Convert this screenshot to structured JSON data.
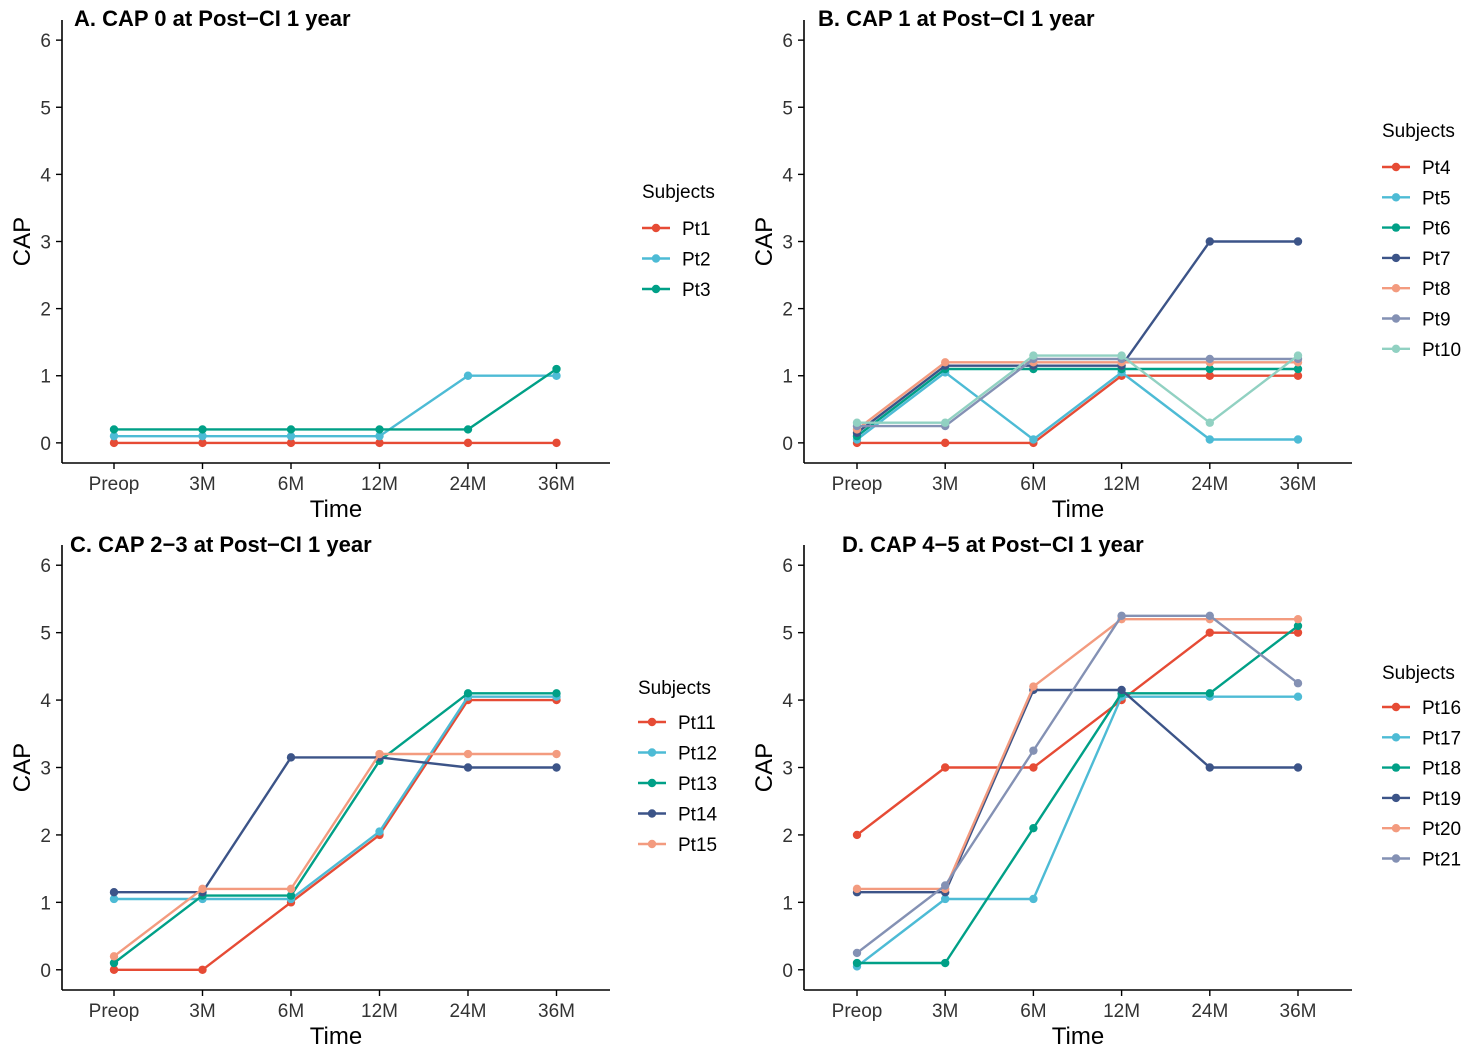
{
  "chart_data": [
    {
      "type": "line",
      "title": "A. CAP 0 at Post−CI 1 year",
      "xlabel": "Time",
      "ylabel": "CAP",
      "categories": [
        "Preop",
        "3M",
        "6M",
        "12M",
        "24M",
        "36M"
      ],
      "ylim": [
        -0.3,
        6.3
      ],
      "yticks": [
        0,
        1,
        2,
        3,
        4,
        5,
        6
      ],
      "legend_title": "Subjects",
      "legend_position": "right",
      "grid": false,
      "series": [
        {
          "name": "Pt1",
          "color": "#E64B35",
          "values": [
            0,
            0,
            0,
            0,
            0,
            0
          ]
        },
        {
          "name": "Pt2",
          "color": "#4DBBD5",
          "values": [
            0.1,
            0.1,
            0.1,
            0.1,
            1,
            1
          ]
        },
        {
          "name": "Pt3",
          "color": "#00A087",
          "values": [
            0.2,
            0.2,
            0.2,
            0.2,
            0.2,
            1.1
          ]
        }
      ]
    },
    {
      "type": "line",
      "title": "B. CAP 1 at Post−CI 1 year",
      "xlabel": "Time",
      "ylabel": "CAP",
      "categories": [
        "Preop",
        "3M",
        "6M",
        "12M",
        "24M",
        "36M"
      ],
      "ylim": [
        -0.3,
        6.3
      ],
      "yticks": [
        0,
        1,
        2,
        3,
        4,
        5,
        6
      ],
      "legend_title": "Subjects",
      "legend_position": "right",
      "grid": false,
      "series": [
        {
          "name": "Pt4",
          "color": "#E64B35",
          "values": [
            0,
            0,
            0,
            1,
            1,
            1
          ]
        },
        {
          "name": "Pt5",
          "color": "#4DBBD5",
          "values": [
            0.05,
            1.05,
            0.05,
            1.05,
            0.05,
            0.05
          ]
        },
        {
          "name": "Pt6",
          "color": "#00A087",
          "values": [
            0.1,
            1.1,
            1.1,
            1.1,
            1.1,
            1.1
          ]
        },
        {
          "name": "Pt7",
          "color": "#3C5488",
          "values": [
            0.15,
            1.15,
            1.15,
            1.15,
            3,
            3
          ]
        },
        {
          "name": "Pt8",
          "color": "#F39B7F",
          "values": [
            0.2,
            1.2,
            1.2,
            1.2,
            1.2,
            1.2
          ]
        },
        {
          "name": "Pt9",
          "color": "#8491B4",
          "values": [
            0.25,
            0.25,
            1.25,
            1.25,
            1.25,
            1.25
          ]
        },
        {
          "name": "Pt10",
          "color": "#91D1C2",
          "values": [
            0.3,
            0.3,
            1.3,
            1.3,
            0.3,
            1.3
          ]
        }
      ]
    },
    {
      "type": "line",
      "title": "C. CAP 2−3 at Post−CI 1 year",
      "xlabel": "Time",
      "ylabel": "CAP",
      "categories": [
        "Preop",
        "3M",
        "6M",
        "12M",
        "24M",
        "36M"
      ],
      "ylim": [
        -0.3,
        6.3
      ],
      "yticks": [
        0,
        1,
        2,
        3,
        4,
        5,
        6
      ],
      "legend_title": "Subjects",
      "legend_position": "right",
      "grid": false,
      "series": [
        {
          "name": "Pt11",
          "color": "#E64B35",
          "values": [
            0,
            0,
            1,
            2,
            4,
            4
          ]
        },
        {
          "name": "Pt12",
          "color": "#4DBBD5",
          "values": [
            1.05,
            1.05,
            1.05,
            2.05,
            4.05,
            4.05
          ]
        },
        {
          "name": "Pt13",
          "color": "#00A087",
          "values": [
            0.1,
            1.1,
            1.1,
            3.1,
            4.1,
            4.1
          ]
        },
        {
          "name": "Pt14",
          "color": "#3C5488",
          "values": [
            1.15,
            1.15,
            3.15,
            3.15,
            3,
            3
          ]
        },
        {
          "name": "Pt15",
          "color": "#F39B7F",
          "values": [
            0.2,
            1.2,
            1.2,
            3.2,
            3.2,
            3.2
          ]
        }
      ]
    },
    {
      "type": "line",
      "title": "D. CAP 4−5 at Post−CI 1 year",
      "xlabel": "Time",
      "ylabel": "CAP",
      "categories": [
        "Preop",
        "3M",
        "6M",
        "12M",
        "24M",
        "36M"
      ],
      "ylim": [
        -0.3,
        6.3
      ],
      "yticks": [
        0,
        1,
        2,
        3,
        4,
        5,
        6
      ],
      "legend_title": "Subjects",
      "legend_position": "right",
      "grid": false,
      "series": [
        {
          "name": "Pt16",
          "color": "#E64B35",
          "values": [
            2,
            3,
            3,
            4,
            5,
            5
          ]
        },
        {
          "name": "Pt17",
          "color": "#4DBBD5",
          "values": [
            0.05,
            1.05,
            1.05,
            4.05,
            4.05,
            4.05
          ]
        },
        {
          "name": "Pt18",
          "color": "#00A087",
          "values": [
            0.1,
            0.1,
            2.1,
            4.1,
            4.1,
            5.1
          ]
        },
        {
          "name": "Pt19",
          "color": "#3C5488",
          "values": [
            1.15,
            1.15,
            4.15,
            4.15,
            3,
            3
          ]
        },
        {
          "name": "Pt20",
          "color": "#F39B7F",
          "values": [
            1.2,
            1.2,
            4.2,
            5.2,
            5.2,
            5.2
          ]
        },
        {
          "name": "Pt21",
          "color": "#8491B4",
          "values": [
            0.25,
            1.25,
            3.25,
            5.25,
            5.25,
            4.25
          ]
        }
      ]
    }
  ]
}
